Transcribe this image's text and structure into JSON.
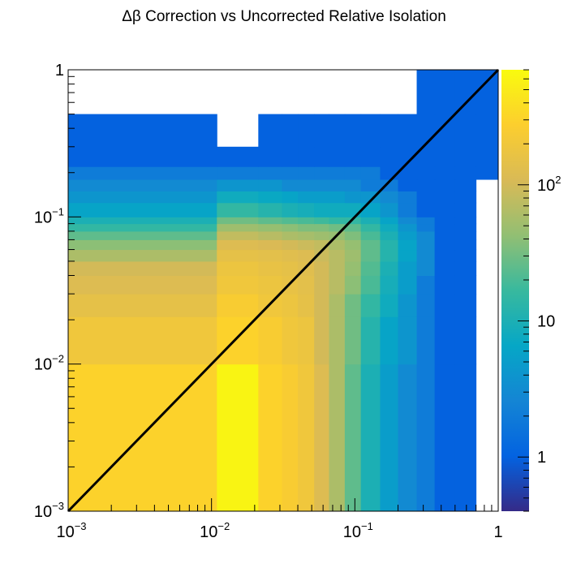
{
  "chart_data": {
    "type": "heatmap",
    "title": "Δβ Correction vs Uncorrected Relative Isolation",
    "xlabel": "",
    "ylabel": "",
    "x_scale": "log",
    "y_scale": "log",
    "xlim": [
      0.001,
      1
    ],
    "ylim": [
      0.001,
      1
    ],
    "z_scale": "log",
    "zlim": [
      0.4,
      700
    ],
    "x_ticks": [
      {
        "value": 0.001,
        "base": "10",
        "exp": "−3"
      },
      {
        "value": 0.01,
        "base": "10",
        "exp": "−2"
      },
      {
        "value": 0.1,
        "base": "10",
        "exp": "−1"
      },
      {
        "value": 1,
        "base": "1",
        "exp": ""
      }
    ],
    "y_ticks": [
      {
        "value": 0.001,
        "base": "10",
        "exp": "−3"
      },
      {
        "value": 0.01,
        "base": "10",
        "exp": "−2"
      },
      {
        "value": 0.1,
        "base": "10",
        "exp": "−1"
      },
      {
        "value": 1,
        "base": "1",
        "exp": ""
      }
    ],
    "colorbar_ticks": [
      {
        "value": 1,
        "base": "1",
        "exp": ""
      },
      {
        "value": 10,
        "base": "10",
        "exp": ""
      },
      {
        "value": 100,
        "base": "10",
        "exp": "2"
      }
    ],
    "palette": [
      "#352a87",
      "#0363e1",
      "#1485d4",
      "#06a7c6",
      "#38b99e",
      "#92bf73",
      "#d9ba56",
      "#fcce2e",
      "#f9fb0e"
    ],
    "line": {
      "type": "diagonal y = x",
      "color": "#000000",
      "from": [
        0.001,
        0.001
      ],
      "to": [
        1,
        1
      ]
    },
    "x_bin_edges": [
      0.001,
      0.0109,
      0.0212,
      0.031,
      0.04,
      0.052,
      0.066,
      0.085,
      0.11,
      0.15,
      0.2,
      0.27,
      0.36,
      0.5,
      0.7,
      1.0
    ],
    "y_bin_edges": [
      0.001,
      0.01,
      0.021,
      0.03,
      0.04,
      0.05,
      0.06,
      0.07,
      0.08,
      0.09,
      0.1,
      0.125,
      0.15,
      0.18,
      0.22,
      0.3,
      0.5,
      1.0
    ],
    "counts": [
      [
        300,
        600,
        300,
        250,
        200,
        120,
        60,
        25,
        10,
        5,
        3,
        2,
        1,
        1,
        0
      ],
      [
        200,
        300,
        250,
        200,
        180,
        100,
        60,
        30,
        12,
        6,
        4,
        2,
        1,
        1,
        0
      ],
      [
        150,
        250,
        200,
        180,
        150,
        100,
        60,
        30,
        15,
        8,
        4,
        2,
        1,
        1,
        0
      ],
      [
        120,
        200,
        180,
        160,
        140,
        100,
        70,
        40,
        20,
        9,
        5,
        2,
        1,
        1,
        0
      ],
      [
        100,
        180,
        160,
        150,
        130,
        100,
        70,
        45,
        22,
        10,
        5,
        3,
        1,
        1,
        0
      ],
      [
        60,
        150,
        140,
        130,
        120,
        90,
        70,
        50,
        25,
        12,
        6,
        3,
        1,
        1,
        0
      ],
      [
        40,
        120,
        110,
        100,
        90,
        80,
        60,
        45,
        25,
        12,
        6,
        3,
        1,
        1,
        0
      ],
      [
        25,
        80,
        70,
        60,
        55,
        50,
        45,
        35,
        20,
        10,
        5,
        3,
        1,
        1,
        0
      ],
      [
        15,
        50,
        45,
        40,
        35,
        35,
        30,
        25,
        15,
        8,
        4,
        2,
        1,
        1,
        0
      ],
      [
        10,
        30,
        25,
        22,
        20,
        18,
        15,
        15,
        10,
        6,
        3,
        2,
        1,
        1,
        0
      ],
      [
        6,
        15,
        12,
        10,
        9,
        8,
        8,
        8,
        6,
        4,
        2,
        1,
        1,
        1,
        0
      ],
      [
        4,
        8,
        7,
        6,
        5,
        5,
        5,
        4,
        4,
        3,
        2,
        1,
        1,
        1,
        0
      ],
      [
        3,
        4,
        4,
        3,
        3,
        3,
        3,
        3,
        2,
        2,
        1,
        1,
        1,
        1,
        0
      ],
      [
        2,
        2,
        2,
        2,
        2,
        2,
        2,
        2,
        2,
        1,
        1,
        1,
        1,
        1,
        1
      ],
      [
        1,
        1,
        1,
        1,
        1,
        1,
        1,
        1,
        1,
        1,
        1,
        1,
        1,
        1,
        1
      ],
      [
        1,
        0,
        1,
        1,
        1,
        1,
        1,
        1,
        1,
        1,
        1,
        1,
        1,
        1,
        1
      ],
      [
        0,
        0,
        0,
        0,
        0,
        0,
        0,
        0,
        0,
        0,
        0,
        1,
        1,
        1,
        1
      ]
    ]
  }
}
